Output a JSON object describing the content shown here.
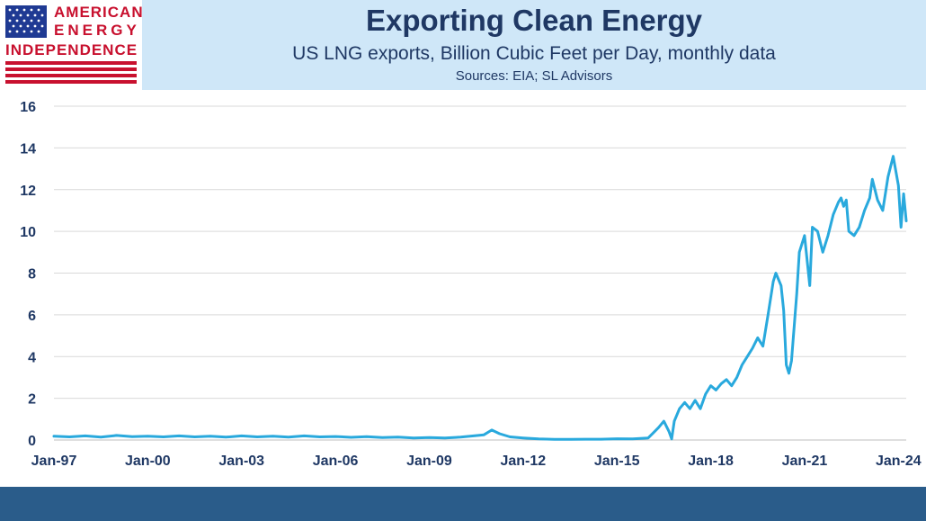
{
  "header": {
    "title": "Exporting Clean Energy",
    "subtitle": "US LNG exports, Billion Cubic Feet per Day, monthly data",
    "sources": "Sources: EIA; SL Advisors"
  },
  "logo": {
    "line1": "AMERICAN",
    "line2": "ENERGY",
    "line3": "INDEPENDENCE"
  },
  "colors": {
    "header_band": "#cfe7f8",
    "title": "#1f3864",
    "line": "#29a9dd",
    "grid": "#d9d9d9",
    "footer": "#2a5c8a",
    "logo_red": "#c8102e",
    "logo_blue": "#1f3a93"
  },
  "chart_data": {
    "type": "line",
    "x_start": "1997-01",
    "x_end": "2024-04",
    "ylim": [
      0,
      16
    ],
    "yticks": [
      "0",
      "2",
      "4",
      "6",
      "8",
      "10",
      "12",
      "14",
      "16"
    ],
    "xticks": [
      "Jan-97",
      "Jan-00",
      "Jan-03",
      "Jan-06",
      "Jan-09",
      "Jan-12",
      "Jan-15",
      "Jan-18",
      "Jan-21",
      "Jan-24"
    ],
    "grid": true,
    "series": [
      {
        "points": [
          [
            "1997-01",
            0.18
          ],
          [
            "1997-07",
            0.15
          ],
          [
            "1998-01",
            0.2
          ],
          [
            "1998-07",
            0.14
          ],
          [
            "1999-01",
            0.22
          ],
          [
            "1999-07",
            0.16
          ],
          [
            "2000-01",
            0.18
          ],
          [
            "2000-07",
            0.15
          ],
          [
            "2001-01",
            0.2
          ],
          [
            "2001-07",
            0.15
          ],
          [
            "2002-01",
            0.18
          ],
          [
            "2002-07",
            0.14
          ],
          [
            "2003-01",
            0.2
          ],
          [
            "2003-07",
            0.15
          ],
          [
            "2004-01",
            0.18
          ],
          [
            "2004-07",
            0.14
          ],
          [
            "2005-01",
            0.2
          ],
          [
            "2005-07",
            0.15
          ],
          [
            "2006-01",
            0.17
          ],
          [
            "2006-07",
            0.13
          ],
          [
            "2007-01",
            0.16
          ],
          [
            "2007-07",
            0.12
          ],
          [
            "2008-01",
            0.14
          ],
          [
            "2008-07",
            0.1
          ],
          [
            "2009-01",
            0.12
          ],
          [
            "2009-07",
            0.1
          ],
          [
            "2010-01",
            0.14
          ],
          [
            "2010-06",
            0.2
          ],
          [
            "2010-10",
            0.25
          ],
          [
            "2011-01",
            0.48
          ],
          [
            "2011-04",
            0.3
          ],
          [
            "2011-08",
            0.15
          ],
          [
            "2012-01",
            0.1
          ],
          [
            "2012-07",
            0.05
          ],
          [
            "2013-01",
            0.03
          ],
          [
            "2013-07",
            0.03
          ],
          [
            "2014-01",
            0.04
          ],
          [
            "2014-07",
            0.04
          ],
          [
            "2015-01",
            0.06
          ],
          [
            "2015-07",
            0.05
          ],
          [
            "2016-01",
            0.1
          ],
          [
            "2016-03",
            0.35
          ],
          [
            "2016-05",
            0.6
          ],
          [
            "2016-07",
            0.9
          ],
          [
            "2016-09",
            0.4
          ],
          [
            "2016-10",
            0.05
          ],
          [
            "2016-11",
            0.9
          ],
          [
            "2017-01",
            1.5
          ],
          [
            "2017-03",
            1.8
          ],
          [
            "2017-05",
            1.5
          ],
          [
            "2017-07",
            1.9
          ],
          [
            "2017-09",
            1.5
          ],
          [
            "2017-11",
            2.2
          ],
          [
            "2018-01",
            2.6
          ],
          [
            "2018-03",
            2.4
          ],
          [
            "2018-05",
            2.7
          ],
          [
            "2018-07",
            2.9
          ],
          [
            "2018-09",
            2.6
          ],
          [
            "2018-11",
            3.0
          ],
          [
            "2019-01",
            3.6
          ],
          [
            "2019-03",
            4.0
          ],
          [
            "2019-05",
            4.4
          ],
          [
            "2019-07",
            4.9
          ],
          [
            "2019-09",
            4.5
          ],
          [
            "2019-11",
            6.0
          ],
          [
            "2020-01",
            7.6
          ],
          [
            "2020-02",
            8.0
          ],
          [
            "2020-04",
            7.4
          ],
          [
            "2020-05",
            6.2
          ],
          [
            "2020-06",
            3.6
          ],
          [
            "2020-07",
            3.2
          ],
          [
            "2020-08",
            3.8
          ],
          [
            "2020-10",
            7.0
          ],
          [
            "2020-11",
            9.0
          ],
          [
            "2021-01",
            9.8
          ],
          [
            "2021-03",
            7.4
          ],
          [
            "2021-04",
            10.2
          ],
          [
            "2021-06",
            10.0
          ],
          [
            "2021-08",
            9.0
          ],
          [
            "2021-10",
            9.8
          ],
          [
            "2021-12",
            10.8
          ],
          [
            "2022-02",
            11.4
          ],
          [
            "2022-03",
            11.6
          ],
          [
            "2022-04",
            11.2
          ],
          [
            "2022-05",
            11.5
          ],
          [
            "2022-06",
            10.0
          ],
          [
            "2022-08",
            9.8
          ],
          [
            "2022-10",
            10.2
          ],
          [
            "2022-12",
            11.0
          ],
          [
            "2023-02",
            11.6
          ],
          [
            "2023-03",
            12.5
          ],
          [
            "2023-05",
            11.5
          ],
          [
            "2023-07",
            11.0
          ],
          [
            "2023-09",
            12.6
          ],
          [
            "2023-11",
            13.6
          ],
          [
            "2024-01",
            12.2
          ],
          [
            "2024-02",
            10.2
          ],
          [
            "2024-03",
            11.8
          ],
          [
            "2024-04",
            10.5
          ]
        ]
      }
    ]
  }
}
